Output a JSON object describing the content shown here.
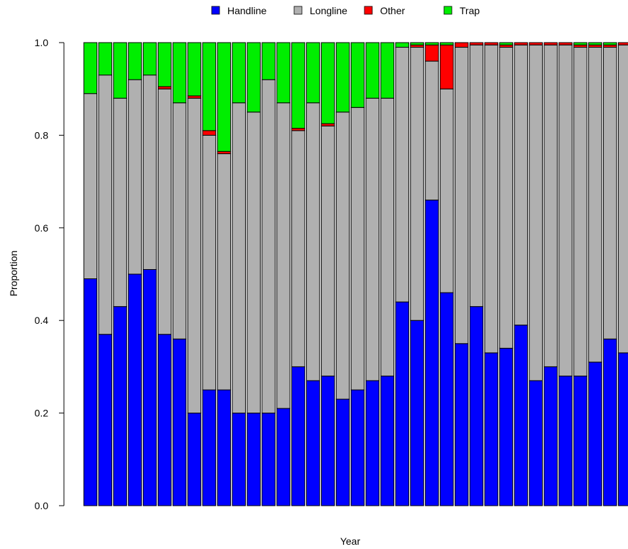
{
  "chart_data": {
    "type": "bar",
    "stacked": true,
    "title": "",
    "xlabel": "Year",
    "ylabel": "Proportion",
    "ylim": [
      0,
      1
    ],
    "yticks": [
      0.0,
      0.2,
      0.4,
      0.6,
      0.8,
      1.0
    ],
    "ytick_labels": [
      "0.0",
      "0.2",
      "0.4",
      "0.6",
      "0.8",
      "1.0"
    ],
    "grid": false,
    "legend_position": "top-center",
    "bar_count": 37,
    "series": [
      {
        "name": "Handline",
        "color": "#0000ff",
        "values": [
          0.49,
          0.37,
          0.43,
          0.5,
          0.51,
          0.37,
          0.36,
          0.2,
          0.25,
          0.25,
          0.2,
          0.2,
          0.2,
          0.21,
          0.3,
          0.27,
          0.28,
          0.23,
          0.25,
          0.27,
          0.28,
          0.44,
          0.4,
          0.66,
          0.46,
          0.35,
          0.43,
          0.33,
          0.34,
          0.39,
          0.27,
          0.3,
          0.28,
          0.28,
          0.31,
          0.36,
          0.33
        ]
      },
      {
        "name": "Longline",
        "color": "#b0b0b0",
        "values": [
          0.4,
          0.56,
          0.45,
          0.42,
          0.42,
          0.53,
          0.51,
          0.68,
          0.55,
          0.51,
          0.67,
          0.65,
          0.72,
          0.66,
          0.51,
          0.6,
          0.54,
          0.62,
          0.61,
          0.61,
          0.6,
          0.55,
          0.59,
          0.3,
          0.44,
          0.64,
          0.565,
          0.665,
          0.65,
          0.605,
          0.725,
          0.695,
          0.715,
          0.71,
          0.68,
          0.63,
          0.665
        ]
      },
      {
        "name": "Other",
        "color": "#ff0000",
        "values": [
          0.0,
          0.0,
          0.0,
          0.0,
          0.0,
          0.005,
          0.0,
          0.005,
          0.01,
          0.005,
          0.0,
          0.0,
          0.0,
          0.0,
          0.005,
          0.0,
          0.005,
          0.0,
          0.0,
          0.0,
          0.0,
          0.0,
          0.005,
          0.035,
          0.095,
          0.01,
          0.005,
          0.005,
          0.005,
          0.005,
          0.005,
          0.005,
          0.005,
          0.005,
          0.005,
          0.005,
          0.005
        ]
      },
      {
        "name": "Trap",
        "color": "#00ee00",
        "values": [
          0.11,
          0.07,
          0.12,
          0.08,
          0.07,
          0.095,
          0.13,
          0.115,
          0.19,
          0.235,
          0.13,
          0.15,
          0.08,
          0.13,
          0.185,
          0.13,
          0.175,
          0.15,
          0.14,
          0.12,
          0.12,
          0.01,
          0.005,
          0.005,
          0.005,
          0.0,
          0.0,
          0.0,
          0.0,
          0.0,
          0.0,
          0.0,
          0.0,
          0.005,
          0.005,
          0.005,
          0.0
        ]
      }
    ]
  }
}
